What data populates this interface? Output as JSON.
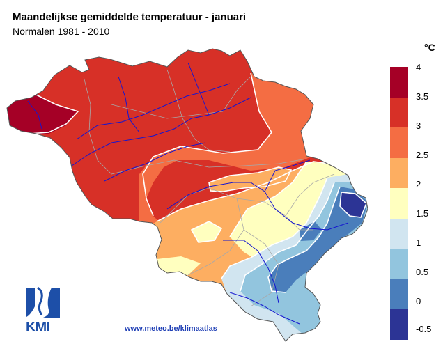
{
  "title": "Maandelijkse gemiddelde temperatuur - januari",
  "subtitle": "Normalen 1981 - 2010",
  "legend": {
    "unit": "°C",
    "ticks": [
      "4",
      "3.5",
      "3",
      "2.5",
      "2",
      "1.5",
      "1",
      "0.5",
      "0",
      "-0.5"
    ],
    "classes": [
      {
        "from": 3.5,
        "to": 4,
        "color": "#a50026"
      },
      {
        "from": 3,
        "to": 3.5,
        "color": "#d73027"
      },
      {
        "from": 2.5,
        "to": 3,
        "color": "#f46d43"
      },
      {
        "from": 2,
        "to": 2.5,
        "color": "#fdae61"
      },
      {
        "from": 1.5,
        "to": 2,
        "color": "#ffffbf"
      },
      {
        "from": 1,
        "to": 1.5,
        "color": "#d1e5f0"
      },
      {
        "from": 0.5,
        "to": 1,
        "color": "#92c5de"
      },
      {
        "from": 0,
        "to": 0.5,
        "color": "#4a7ebb"
      },
      {
        "from": -0.5,
        "to": 0,
        "color": "#2c3495"
      }
    ]
  },
  "logo": {
    "text": "KMI",
    "color": "#1d4fa8"
  },
  "website": "www.meteo.be/klimaatlas",
  "colors": {
    "rivers": "#1515d0",
    "borders": "#a8a8a8",
    "isolines": "#ffffff"
  }
}
